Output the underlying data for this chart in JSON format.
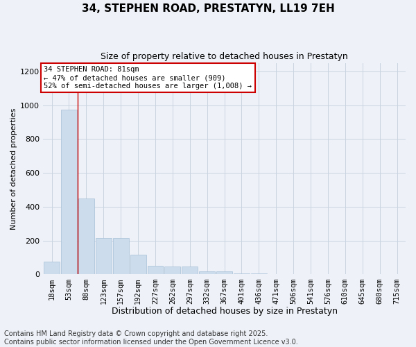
{
  "title": "34, STEPHEN ROAD, PRESTATYN, LL19 7EH",
  "subtitle": "Size of property relative to detached houses in Prestatyn",
  "xlabel": "Distribution of detached houses by size in Prestatyn",
  "ylabel": "Number of detached properties",
  "bar_color": "#ccdcec",
  "bar_edge_color": "#a8c0d8",
  "grid_color": "#c8d4e0",
  "background_color": "#eef2f8",
  "vline_color": "#cc0000",
  "annotation_text": "34 STEPHEN ROAD: 81sqm\n← 47% of detached houses are smaller (909)\n52% of semi-detached houses are larger (1,008) →",
  "annotation_box_facecolor": "white",
  "annotation_box_edgecolor": "#cc0000",
  "categories": [
    "18sqm",
    "53sqm",
    "88sqm",
    "123sqm",
    "157sqm",
    "192sqm",
    "227sqm",
    "262sqm",
    "297sqm",
    "332sqm",
    "367sqm",
    "401sqm",
    "436sqm",
    "471sqm",
    "506sqm",
    "541sqm",
    "576sqm",
    "610sqm",
    "645sqm",
    "680sqm",
    "715sqm"
  ],
  "values": [
    75,
    975,
    450,
    215,
    215,
    115,
    50,
    45,
    45,
    17,
    17,
    8,
    4,
    3,
    0,
    0,
    0,
    0,
    0,
    0,
    0
  ],
  "vline_x": 1.5,
  "ylim": [
    0,
    1250
  ],
  "yticks": [
    0,
    200,
    400,
    600,
    800,
    1000,
    1200
  ],
  "footer": "Contains HM Land Registry data © Crown copyright and database right 2025.\nContains public sector information licensed under the Open Government Licence v3.0.",
  "footer_fontsize": 7,
  "title_fontsize": 11,
  "subtitle_fontsize": 9,
  "ylabel_fontsize": 8,
  "xlabel_fontsize": 9,
  "tick_fontsize": 8,
  "xtick_fontsize": 7.5,
  "annot_fontsize": 7.5
}
